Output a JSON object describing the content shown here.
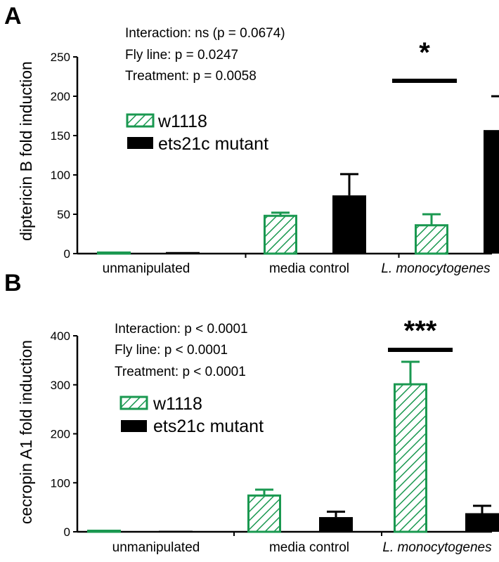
{
  "colors": {
    "w1118": "#1a9850",
    "mutant": "#000000"
  },
  "chart_data": [
    {
      "type": "bar",
      "panel_label": "A",
      "ylabel": "diptericin B fold induction",
      "ylim": [
        0,
        250
      ],
      "yticks": [
        0,
        50,
        100,
        150,
        200,
        250
      ],
      "categories": [
        "unmanipulated",
        "media control",
        "L. monocytogenes"
      ],
      "series": [
        {
          "name": "w1118",
          "values": [
            1,
            48,
            36
          ],
          "errors": [
            0.5,
            4,
            14
          ],
          "style": "hatched"
        },
        {
          "name": "ets21c mutant",
          "values": [
            2,
            74,
            157
          ],
          "errors": [
            1,
            27,
            43
          ],
          "style": "solid"
        }
      ],
      "stats": [
        "Interaction: ns (p = 0.0674)",
        "Fly line: p = 0.0247",
        "Treatment: p = 0.0058"
      ],
      "significance": [
        {
          "category_index": 2,
          "label": "*"
        }
      ],
      "legend_position": "upper-left"
    },
    {
      "type": "bar",
      "panel_label": "B",
      "ylabel": "cecropin A1 fold induction",
      "ylim": [
        0,
        400
      ],
      "yticks": [
        0,
        100,
        200,
        300,
        400
      ],
      "categories": [
        "unmanipulated",
        "media control",
        "L. monocytogenes"
      ],
      "series": [
        {
          "name": "w1118",
          "values": [
            1,
            74,
            301
          ],
          "errors": [
            0.5,
            12,
            46
          ],
          "style": "hatched"
        },
        {
          "name": "ets21c mutant",
          "values": [
            1,
            30,
            38
          ],
          "errors": [
            0.5,
            11,
            15
          ],
          "style": "solid"
        }
      ],
      "stats": [
        "Interaction: p < 0.0001",
        "Fly line: p < 0.0001",
        "Treatment: p < 0.0001"
      ],
      "significance": [
        {
          "category_index": 2,
          "label": "***"
        }
      ],
      "legend_position": "upper-left"
    }
  ]
}
